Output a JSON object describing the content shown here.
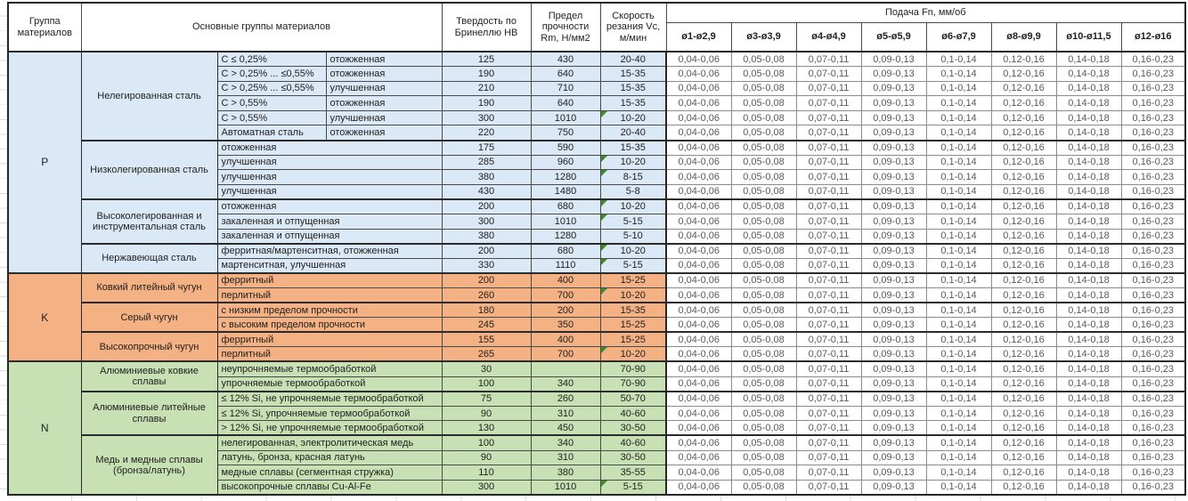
{
  "chart_data": {
    "type": "table",
    "header": {
      "col_group": "Группа материалов",
      "col_main_groups": "Основные группы материалов",
      "col_hardness": "Твердость по Бринеллю HB",
      "col_strength": "Предел прочности Rm, Н/мм2",
      "col_speed": "Скорость резания Vc, м/мин",
      "col_feed": "Подача Fn, мм/об",
      "feed_columns": [
        "ø1-ø2,9",
        "ø3-ø3,9",
        "ø4-ø4,9",
        "ø5-ø5,9",
        "ø6-ø7,9",
        "ø8-ø9,9",
        "ø10-ø11,5",
        "ø12-ø16"
      ]
    },
    "feed_values": [
      "0,04-0,06",
      "0,05-0,08",
      "0,07-0,11",
      "0,09-0,13",
      "0,1-0,14",
      "0,12-0,16",
      "0,14-0,18",
      "0,16-0,23"
    ],
    "marker_color": "#3f8a29",
    "groups": [
      {
        "letter": "P",
        "color": "#dbe8f5",
        "families": [
          {
            "name": "Нелегированная сталь",
            "rows": [
              {
                "desc": [
                  "C ≤ 0,25%",
                  "отожженная"
                ],
                "hb": "125",
                "rm": "430",
                "vc": "20-40",
                "marker": false
              },
              {
                "desc": [
                  "C > 0,25% ... ≤0,55%",
                  "отожженная"
                ],
                "hb": "190",
                "rm": "640",
                "vc": "15-35",
                "marker": false
              },
              {
                "desc": [
                  "C > 0,25% ... ≤0,55%",
                  "улучшенная"
                ],
                "hb": "210",
                "rm": "710",
                "vc": "15-35",
                "marker": false
              },
              {
                "desc": [
                  "C > 0,55%",
                  "отожженная"
                ],
                "hb": "190",
                "rm": "640",
                "vc": "15-35",
                "marker": false
              },
              {
                "desc": [
                  "C > 0,55%",
                  "улучшенная"
                ],
                "hb": "300",
                "rm": "1010",
                "vc": "10-20",
                "marker": true
              },
              {
                "desc": [
                  "Автоматная сталь",
                  "отожженная"
                ],
                "hb": "220",
                "rm": "750",
                "vc": "20-40",
                "marker": false
              }
            ]
          },
          {
            "name": "Низколегированная сталь",
            "rows": [
              {
                "desc": [
                  "отожженная"
                ],
                "hb": "175",
                "rm": "590",
                "vc": "15-35",
                "marker": false
              },
              {
                "desc": [
                  "улучшенная"
                ],
                "hb": "285",
                "rm": "960",
                "vc": "10-20",
                "marker": true
              },
              {
                "desc": [
                  "улучшенная"
                ],
                "hb": "380",
                "rm": "1280",
                "vc": "8-15",
                "marker": true
              },
              {
                "desc": [
                  "улучшенная"
                ],
                "hb": "430",
                "rm": "1480",
                "vc": "5-8",
                "marker": false
              }
            ]
          },
          {
            "name": "Высоколегированная и инструментальная сталь",
            "rows": [
              {
                "desc": [
                  "отожженная"
                ],
                "hb": "200",
                "rm": "680",
                "vc": "10-20",
                "marker": true
              },
              {
                "desc": [
                  "закаленная и отпущенная"
                ],
                "hb": "300",
                "rm": "1010",
                "vc": "5-15",
                "marker": true
              },
              {
                "desc": [
                  "закаленная и отпущенная"
                ],
                "hb": "380",
                "rm": "1280",
                "vc": "5-10",
                "marker": false
              }
            ]
          },
          {
            "name": "Нержавеющая сталь",
            "rows": [
              {
                "desc": [
                  "ферритная/мартенситная, отожженная"
                ],
                "hb": "200",
                "rm": "680",
                "vc": "10-20",
                "marker": true
              },
              {
                "desc": [
                  "мартенситная, улучшенная"
                ],
                "hb": "330",
                "rm": "1110",
                "vc": "5-15",
                "marker": true
              }
            ]
          }
        ]
      },
      {
        "letter": "K",
        "color": "#f4b183",
        "families": [
          {
            "name": "Ковкий литейный чугун",
            "rows": [
              {
                "desc": [
                  "ферритный"
                ],
                "hb": "200",
                "rm": "400",
                "vc": "15-25",
                "marker": false
              },
              {
                "desc": [
                  "перлитный"
                ],
                "hb": "260",
                "rm": "700",
                "vc": "10-20",
                "marker": true
              }
            ]
          },
          {
            "name": "Серый чугун",
            "rows": [
              {
                "desc": [
                  "с низким пределом прочности"
                ],
                "hb": "180",
                "rm": "200",
                "vc": "15-35",
                "marker": false
              },
              {
                "desc": [
                  "с высоким пределом прочности"
                ],
                "hb": "245",
                "rm": "350",
                "vc": "15-25",
                "marker": false
              }
            ]
          },
          {
            "name": "Высокопрочный чугун",
            "rows": [
              {
                "desc": [
                  "ферритный"
                ],
                "hb": "155",
                "rm": "400",
                "vc": "15-25",
                "marker": false
              },
              {
                "desc": [
                  "перлитный"
                ],
                "hb": "265",
                "rm": "700",
                "vc": "10-20",
                "marker": true
              }
            ]
          }
        ]
      },
      {
        "letter": "N",
        "color": "#c7e1b4",
        "families": [
          {
            "name": "Алюминиевые ковкие сплавы",
            "rows": [
              {
                "desc": [
                  "неупрочняемые термообработкой"
                ],
                "hb": "30",
                "rm": "",
                "vc": "70-90",
                "marker": false
              },
              {
                "desc": [
                  "упрочняемые термообработкой"
                ],
                "hb": "100",
                "rm": "340",
                "vc": "70-90",
                "marker": false
              }
            ]
          },
          {
            "name": "Алюминиевые литейные сплавы",
            "rows": [
              {
                "desc": [
                  "≤ 12% Si, не упрочняемые термообработкой"
                ],
                "hb": "75",
                "rm": "260",
                "vc": "50-70",
                "marker": false
              },
              {
                "desc": [
                  "≤ 12% Si, упрочняемые термообработкой"
                ],
                "hb": "90",
                "rm": "310",
                "vc": "40-60",
                "marker": false
              },
              {
                "desc": [
                  "> 12% Si, не упрочняемые термообработкой"
                ],
                "hb": "130",
                "rm": "450",
                "vc": "30-50",
                "marker": false
              }
            ]
          },
          {
            "name": "Медь и медные сплавы (бронза/латунь)",
            "rows": [
              {
                "desc": [
                  "нелегированная, электролитическая медь"
                ],
                "hb": "100",
                "rm": "340",
                "vc": "40-60",
                "marker": false
              },
              {
                "desc": [
                  "латунь, бронза, красная латунь"
                ],
                "hb": "90",
                "rm": "310",
                "vc": "30-50",
                "marker": false
              },
              {
                "desc": [
                  "медные сплавы (сегментная стружка)"
                ],
                "hb": "110",
                "rm": "380",
                "vc": "35-55",
                "marker": false
              },
              {
                "desc": [
                  "высокопрочные сплавы Cu-Al-Fe"
                ],
                "hb": "300",
                "rm": "1010",
                "vc": "5-15",
                "marker": true
              }
            ]
          }
        ]
      }
    ]
  }
}
